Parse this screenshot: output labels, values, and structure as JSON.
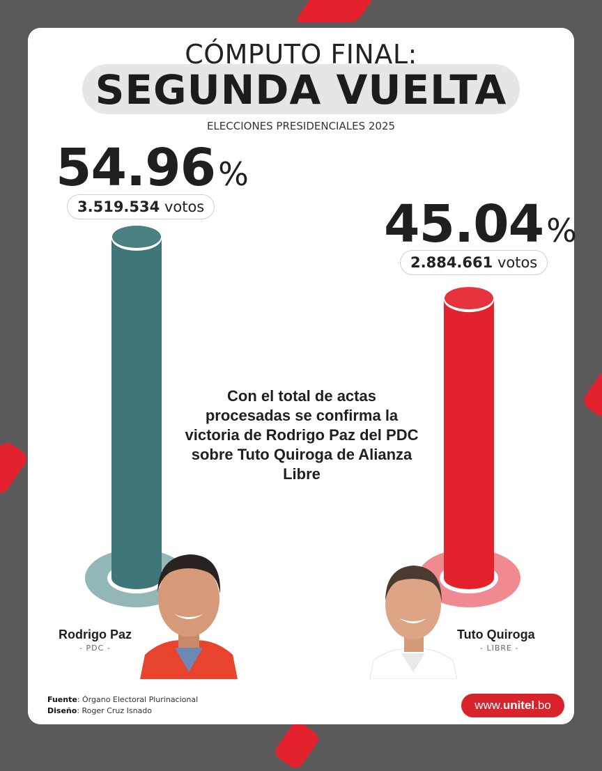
{
  "header": {
    "kicker": "CÓMPUTO FINAL:",
    "title": "SEGUNDA VUELTA",
    "subtitle": "ELECCIONES PRESIDENCIALES 2025"
  },
  "chart_data": {
    "type": "bar",
    "categories": [
      "Rodrigo Paz",
      "Tuto Quiroga"
    ],
    "values": [
      54.96,
      45.04
    ],
    "value_labels": [
      "54.96",
      "45.04"
    ],
    "percent_sign": "%",
    "votes": [
      "3.519.534",
      "2.884.661"
    ],
    "votes_suffix": "votos",
    "parties": [
      "- PDC -",
      "- LIBRE -"
    ],
    "colors": [
      "#3f7778",
      "#e3222d"
    ],
    "ylim": [
      0,
      60
    ]
  },
  "message": "Con el total de actas procesadas se confirma la victoria de Rodrigo Paz del PDC sobre Tuto Quiroga de Alianza Libre",
  "footer": {
    "source_label": "Fuente",
    "source_value": ": Órgano Electoral Plurinacional",
    "design_label": "Diseño",
    "design_value": ": Roger Cruz Isnado",
    "brand_prefix": "www.",
    "brand_name": "unitel",
    "brand_suffix": ".bo"
  },
  "colors": {
    "background": "#5a5a5a",
    "accent": "#d8232a",
    "paz": "#3f7778",
    "quiroga": "#e3222d"
  }
}
